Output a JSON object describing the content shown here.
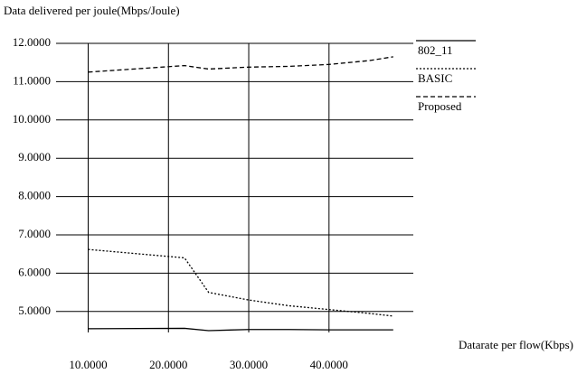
{
  "chart_data": {
    "type": "line",
    "y_label": "Data delivered per joule(Mbps/Joule)",
    "x_label": "Datarate per flow(Kbps)",
    "xlim": [
      6,
      50.5
    ],
    "xticks": [
      {
        "value": 10,
        "label": "10.0000"
      },
      {
        "value": 20,
        "label": "20.0000"
      },
      {
        "value": 30,
        "label": "30.0000"
      },
      {
        "value": 40,
        "label": "40.0000"
      }
    ],
    "ylim": [
      4.5,
      12
    ],
    "yticks": [
      {
        "value": 5,
        "label": "5.0000"
      },
      {
        "value": 6,
        "label": "6.0000"
      },
      {
        "value": 7,
        "label": "7.0000"
      },
      {
        "value": 8,
        "label": "8.0000"
      },
      {
        "value": 9,
        "label": "9.0000"
      },
      {
        "value": 10,
        "label": "10.0000"
      },
      {
        "value": 11,
        "label": "11.0000"
      },
      {
        "value": 12,
        "label": "12.0000"
      }
    ],
    "grid": true,
    "x": [
      10,
      22,
      25,
      30,
      35,
      40,
      45,
      48
    ],
    "series": [
      {
        "name": "802_11",
        "color": "#000000",
        "dash": "none",
        "values": [
          4.55,
          4.56,
          4.5,
          4.53,
          4.53,
          4.52,
          4.52,
          4.52
        ]
      },
      {
        "name": "BASIC",
        "color": "#000000",
        "dash": "2,2",
        "values": [
          6.62,
          6.4,
          5.5,
          5.3,
          5.15,
          5.05,
          4.95,
          4.88
        ]
      },
      {
        "name": "Proposed",
        "color": "#000000",
        "dash": "5,3",
        "values": [
          11.25,
          11.42,
          11.33,
          11.38,
          11.4,
          11.45,
          11.55,
          11.65
        ]
      }
    ]
  }
}
